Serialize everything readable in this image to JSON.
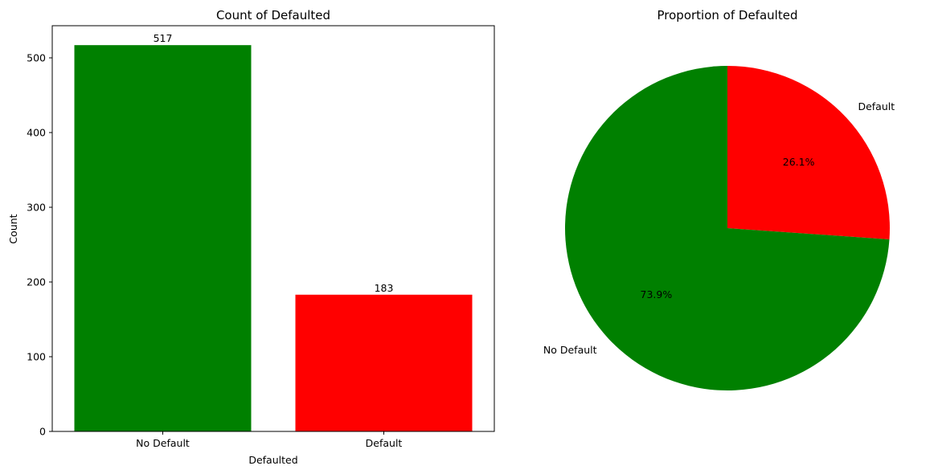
{
  "chart_data": [
    {
      "type": "bar",
      "title": "Count of Defaulted",
      "xlabel": "Defaulted",
      "ylabel": "Count",
      "categories": [
        "No Default",
        "Default"
      ],
      "values": [
        517,
        183
      ],
      "value_labels": [
        "517",
        "183"
      ],
      "colors": [
        "#008000",
        "#ff0000"
      ],
      "ylim": [
        0,
        543
      ],
      "yticks": [
        0,
        100,
        200,
        300,
        400,
        500
      ],
      "ytick_labels": [
        "0",
        "100",
        "200",
        "300",
        "400",
        "500"
      ],
      "grid": false
    },
    {
      "type": "pie",
      "title": "Proportion of Defaulted",
      "slices": [
        {
          "label": "Default",
          "value": 26.1,
          "pct_label": "26.1%",
          "color": "#ff0000"
        },
        {
          "label": "No Default",
          "value": 73.9,
          "pct_label": "73.9%",
          "color": "#008000"
        }
      ]
    }
  ]
}
